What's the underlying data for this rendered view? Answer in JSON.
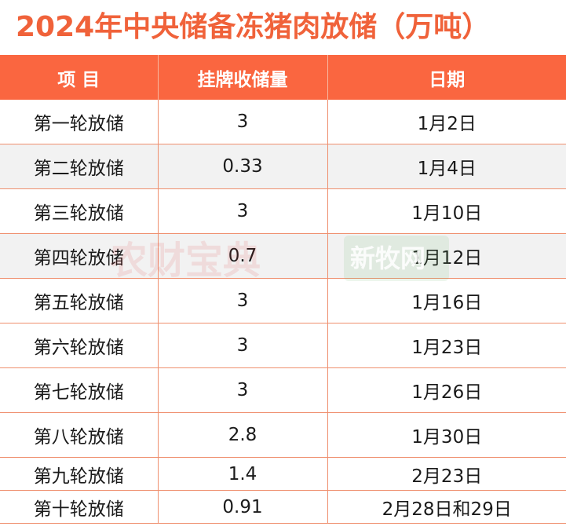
{
  "title": "2024年中央储备冻猪肉放储（万吨）",
  "table": {
    "headers": [
      "项 目",
      "挂牌收储量",
      "日期"
    ],
    "rows": [
      [
        "第一轮放储",
        "3",
        "1月2日"
      ],
      [
        "第二轮放储",
        "0.33",
        "1月4日"
      ],
      [
        "第三轮放储",
        "3",
        "1月10日"
      ],
      [
        "第四轮放储",
        "0.7",
        "1月12日"
      ],
      [
        "第五轮放储",
        "3",
        "1月16日"
      ],
      [
        "第六轮放储",
        "3",
        "1月23日"
      ],
      [
        "第七轮放储",
        "3",
        "1月26日"
      ],
      [
        "第八轮放储",
        "2.8",
        "1月30日"
      ],
      [
        "第九轮放储",
        "1.4",
        "2月23日"
      ],
      [
        "第十轮放储",
        "0.91",
        "2月28日和29日"
      ]
    ]
  },
  "watermarks": {
    "left": "农财宝典",
    "right": "新牧网"
  },
  "colors": {
    "title": "#F0623A",
    "header_bg": "#FA6640",
    "border": "#EF8F6E",
    "alt_row": "#F2F2F2"
  }
}
